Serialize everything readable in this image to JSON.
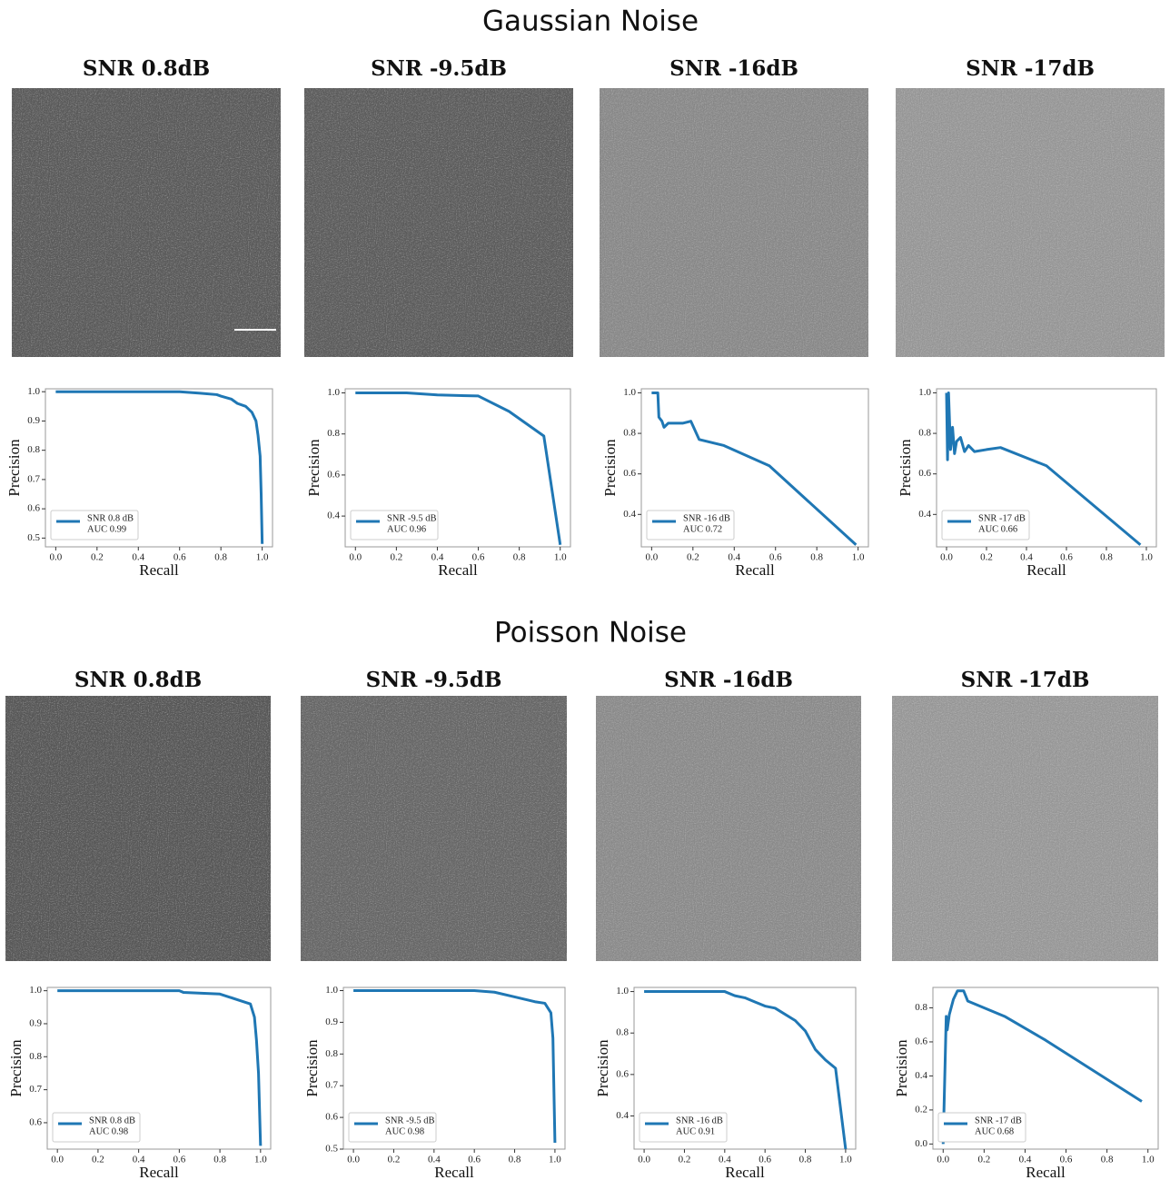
{
  "sections": [
    {
      "title": "Gaussian Noise",
      "panel_titles": [
        "SNR 0.8dB",
        "SNR -9.5dB",
        "SNR -16dB",
        "SNR -17dB"
      ]
    },
    {
      "title": "Poisson Noise",
      "panel_titles": [
        "SNR 0.8dB",
        "SNR -9.5dB",
        "SNR -16dB",
        "SNR -17dB"
      ]
    }
  ],
  "chart_data": [
    {
      "type": "line",
      "xlabel": "Recall",
      "ylabel": "Precision",
      "legend": "lower left",
      "legend_note": "AUC 0.99",
      "xlim": [
        -0.05,
        1.05
      ],
      "ylim": [
        0.47,
        1.01
      ],
      "xticks": [
        {
          "value": 0,
          "label": "0.0"
        },
        0.2,
        0.4,
        0.6,
        0.8,
        {
          "value": 1,
          "label": "1.0"
        }
      ],
      "yticks": [
        0.5,
        0.6,
        0.7,
        0.8,
        0.9,
        {
          "value": 1,
          "label": "1.0"
        }
      ],
      "x": [
        0,
        0.6,
        0.7,
        0.78,
        0.8,
        0.85,
        0.88,
        0.92,
        0.95,
        0.97,
        0.98,
        0.99,
        0.995,
        1.0
      ],
      "series": [
        {
          "name": "SNR 0.8 dB",
          "color": "#1f77b4",
          "values": [
            1.0,
            1.0,
            0.995,
            0.99,
            0.985,
            0.975,
            0.96,
            0.95,
            0.93,
            0.9,
            0.85,
            0.78,
            0.65,
            0.48
          ]
        }
      ]
    },
    {
      "type": "line",
      "xlabel": "Recall",
      "ylabel": "Precision",
      "legend": "lower left",
      "legend_note": "AUC 0.96",
      "xlim": [
        -0.05,
        1.05
      ],
      "ylim": [
        0.25,
        1.02
      ],
      "xticks": [
        {
          "value": 0,
          "label": "0.0"
        },
        0.2,
        0.4,
        0.6,
        0.8,
        {
          "value": 1,
          "label": "1.0"
        }
      ],
      "yticks": [
        0.4,
        0.6,
        0.8,
        {
          "value": 1,
          "label": "1.0"
        }
      ],
      "x": [
        0,
        0.25,
        0.4,
        0.6,
        0.75,
        0.92,
        1.0
      ],
      "series": [
        {
          "name": "SNR -9.5 dB",
          "color": "#1f77b4",
          "values": [
            1.0,
            1.0,
            0.99,
            0.985,
            0.91,
            0.79,
            0.26
          ]
        }
      ]
    },
    {
      "type": "line",
      "xlabel": "Recall",
      "ylabel": "Precision",
      "legend": "lower left",
      "legend_note": "AUC 0.72",
      "xlim": [
        -0.05,
        1.05
      ],
      "ylim": [
        0.24,
        1.02
      ],
      "xticks": [
        {
          "value": 0,
          "label": "0.0"
        },
        0.2,
        0.4,
        0.6,
        0.8,
        {
          "value": 1,
          "label": "1.0"
        }
      ],
      "yticks": [
        0.4,
        0.6,
        0.8,
        {
          "value": 1,
          "label": "1.0"
        }
      ],
      "x": [
        0,
        0.03,
        0.035,
        0.05,
        0.06,
        0.08,
        0.12,
        0.15,
        0.19,
        0.23,
        0.35,
        0.57,
        0.99
      ],
      "series": [
        {
          "name": "SNR -16 dB",
          "color": "#1f77b4",
          "values": [
            1.0,
            1.0,
            0.88,
            0.86,
            0.83,
            0.85,
            0.85,
            0.85,
            0.86,
            0.77,
            0.74,
            0.64,
            0.25
          ]
        }
      ]
    },
    {
      "type": "line",
      "xlabel": "Recall",
      "ylabel": "Precision",
      "legend": "lower left",
      "legend_note": "AUC 0.66",
      "xlim": [
        -0.05,
        1.05
      ],
      "ylim": [
        0.24,
        1.02
      ],
      "xticks": [
        {
          "value": 0,
          "label": "0.0"
        },
        0.2,
        0.4,
        0.6,
        0.8,
        {
          "value": 1,
          "label": "1.0"
        }
      ],
      "yticks": [
        0.4,
        0.6,
        0.8,
        {
          "value": 1,
          "label": "1.0"
        }
      ],
      "x": [
        0,
        0.005,
        0.01,
        0.02,
        0.03,
        0.04,
        0.05,
        0.07,
        0.09,
        0.11,
        0.14,
        0.2,
        0.27,
        0.5,
        0.97
      ],
      "series": [
        {
          "name": "SNR -17 dB",
          "color": "#1f77b4",
          "values": [
            1.0,
            0.67,
            1.0,
            0.72,
            0.83,
            0.7,
            0.76,
            0.78,
            0.71,
            0.74,
            0.71,
            0.72,
            0.73,
            0.64,
            0.25
          ]
        }
      ]
    },
    {
      "type": "line",
      "xlabel": "Recall",
      "ylabel": "Precision",
      "legend": "lower left",
      "legend_note": "AUC 0.98",
      "xlim": [
        -0.05,
        1.05
      ],
      "ylim": [
        0.52,
        1.01
      ],
      "xticks": [
        {
          "value": 0,
          "label": "0.0"
        },
        0.2,
        0.4,
        0.6,
        0.8,
        {
          "value": 1,
          "label": "1.0"
        }
      ],
      "yticks": [
        0.6,
        0.7,
        0.8,
        0.9,
        {
          "value": 1,
          "label": "1.0"
        }
      ],
      "x": [
        0,
        0.6,
        0.62,
        0.8,
        0.85,
        0.9,
        0.95,
        0.97,
        0.98,
        0.99,
        1.0
      ],
      "series": [
        {
          "name": "SNR 0.8 dB",
          "color": "#1f77b4",
          "values": [
            1,
            1,
            0.995,
            0.99,
            0.98,
            0.97,
            0.96,
            0.92,
            0.85,
            0.75,
            0.53
          ]
        }
      ]
    },
    {
      "type": "line",
      "xlabel": "Recall",
      "ylabel": "Precision",
      "legend": "lower left",
      "legend_note": "AUC 0.98",
      "xlim": [
        -0.05,
        1.05
      ],
      "ylim": [
        0.5,
        1.01
      ],
      "xticks": [
        {
          "value": 0,
          "label": "0.0"
        },
        0.2,
        0.4,
        0.6,
        0.8,
        {
          "value": 1,
          "label": "1.0"
        }
      ],
      "yticks": [
        0.5,
        0.6,
        0.7,
        0.8,
        0.9,
        {
          "value": 1,
          "label": "1.0"
        }
      ],
      "x": [
        0,
        0.6,
        0.7,
        0.8,
        0.9,
        0.95,
        0.98,
        0.99,
        1.0
      ],
      "series": [
        {
          "name": "SNR -9.5 dB",
          "color": "#1f77b4",
          "values": [
            1,
            1,
            0.995,
            0.98,
            0.965,
            0.96,
            0.93,
            0.85,
            0.52
          ]
        }
      ]
    },
    {
      "type": "line",
      "xlabel": "Recall",
      "ylabel": "Precision",
      "legend": "lower left",
      "legend_note": "AUC 0.91",
      "xlim": [
        -0.05,
        1.05
      ],
      "ylim": [
        0.24,
        1.02
      ],
      "xticks": [
        {
          "value": 0,
          "label": "0.0"
        },
        0.2,
        0.4,
        0.6,
        0.8,
        {
          "value": 1,
          "label": "1.0"
        }
      ],
      "yticks": [
        0.4,
        0.6,
        0.8,
        {
          "value": 1,
          "label": "1.0"
        }
      ],
      "x": [
        0,
        0.4,
        0.45,
        0.5,
        0.55,
        0.6,
        0.65,
        0.75,
        0.8,
        0.85,
        0.9,
        0.95,
        1.0
      ],
      "series": [
        {
          "name": "SNR -16 dB",
          "color": "#1f77b4",
          "values": [
            1,
            1,
            0.98,
            0.97,
            0.95,
            0.93,
            0.92,
            0.86,
            0.81,
            0.72,
            0.67,
            0.63,
            0.24
          ]
        }
      ]
    },
    {
      "type": "line",
      "xlabel": "Recall",
      "ylabel": "Precision",
      "legend": "lower left",
      "legend_note": "AUC 0.68",
      "xlim": [
        -0.05,
        1.05
      ],
      "ylim": [
        -0.03,
        0.92
      ],
      "xticks": [
        {
          "value": 0,
          "label": "0.0"
        },
        0.2,
        0.4,
        0.6,
        0.8,
        {
          "value": 1,
          "label": "1.0"
        }
      ],
      "yticks": [
        {
          "value": 0,
          "label": "0.0"
        },
        0.2,
        0.4,
        0.6,
        0.8
      ],
      "x": [
        0,
        0.01,
        0.015,
        0.02,
        0.03,
        0.05,
        0.07,
        0.1,
        0.12,
        0.14,
        0.3,
        0.5,
        0.97
      ],
      "series": [
        {
          "name": "SNR -17 dB",
          "color": "#1f77b4",
          "values": [
            0,
            0.5,
            0.75,
            0.67,
            0.76,
            0.85,
            0.9,
            0.9,
            0.84,
            0.83,
            0.75,
            0.61,
            0.25
          ]
        }
      ]
    }
  ]
}
